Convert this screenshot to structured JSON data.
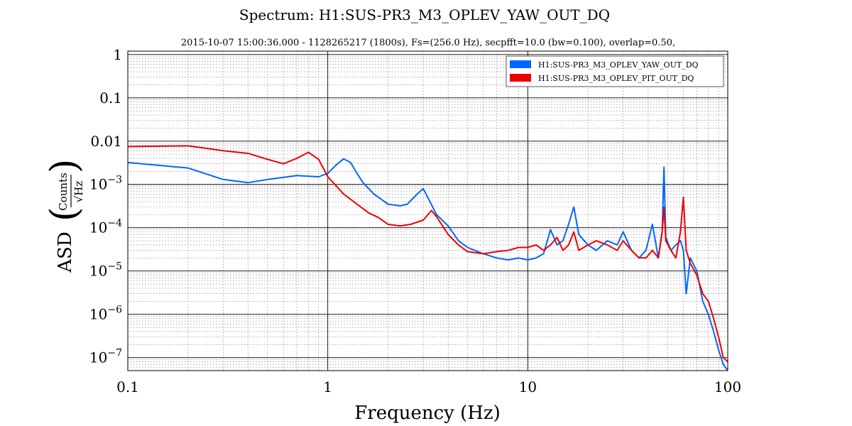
{
  "chart_data": {
    "type": "line",
    "title": "Spectrum: H1:SUS-PR3_M3_OPLEV_YAW_OUT_DQ",
    "subtitle": "2015-10-07 15:00:36.000 - 1128265217 (1800s), Fs=(256.0 Hz), secpfft=10.0 (bw=0.100), overlap=0.50,",
    "xlabel": "Frequency (Hz)",
    "ylabel": "ASD",
    "ylabel_fraction_num": "Counts",
    "ylabel_fraction_den": "√Hz",
    "xscale": "log",
    "yscale": "log",
    "xlim": [
      0.1,
      100
    ],
    "ylim": [
      5e-08,
      1.2
    ],
    "grid": true,
    "legend_position": "top-right",
    "x_ticks": [
      {
        "value": 0.1,
        "label": "0.1"
      },
      {
        "value": 1,
        "label": "1"
      },
      {
        "value": 10,
        "label": "10"
      },
      {
        "value": 100,
        "label": "100"
      }
    ],
    "y_ticks": [
      {
        "value": 1,
        "label": "1"
      },
      {
        "value": 0.1,
        "label": "0.1"
      },
      {
        "value": 0.01,
        "label": "0.01"
      },
      {
        "value": 0.001,
        "label": "10",
        "exp": "−3"
      },
      {
        "value": 0.0001,
        "label": "10",
        "exp": "−4"
      },
      {
        "value": 1e-05,
        "label": "10",
        "exp": "−5"
      },
      {
        "value": 1e-06,
        "label": "10",
        "exp": "−6"
      },
      {
        "value": 1e-07,
        "label": "10",
        "exp": "−7"
      }
    ],
    "series": [
      {
        "name": "H1:SUS-PR3_M3_OPLEV_YAW_OUT_DQ",
        "color": "#0066ff",
        "x": [
          0.1,
          0.2,
          0.3,
          0.4,
          0.5,
          0.7,
          0.9,
          1.0,
          1.1,
          1.2,
          1.3,
          1.4,
          1.5,
          1.7,
          2.0,
          2.3,
          2.5,
          2.8,
          3.0,
          3.2,
          3.5,
          4.0,
          4.5,
          5.0,
          6.0,
          7.0,
          8.0,
          9.0,
          10.0,
          11.0,
          12.0,
          13.0,
          14.0,
          15.0,
          16.0,
          17.0,
          18.0,
          20.0,
          22.0,
          25.0,
          28.0,
          30.0,
          33.0,
          36.0,
          39.0,
          42.0,
          45.0,
          47.0,
          48.0,
          49.0,
          52.0,
          55.0,
          58.0,
          60.0,
          62.0,
          65.0,
          70.0,
          75.0,
          80.0,
          85.0,
          90.0,
          95.0,
          100.0
        ],
        "values": [
          0.0032,
          0.0024,
          0.0013,
          0.0011,
          0.0013,
          0.0016,
          0.0015,
          0.0018,
          0.0028,
          0.0039,
          0.0032,
          0.0018,
          0.0011,
          0.0006,
          0.00035,
          0.00032,
          0.00035,
          0.0006,
          0.0008,
          0.00045,
          0.0002,
          0.00011,
          5e-05,
          3.5e-05,
          2.5e-05,
          2e-05,
          1.8e-05,
          2e-05,
          1.8e-05,
          2e-05,
          2.5e-05,
          9e-05,
          4e-05,
          5e-05,
          0.00012,
          0.0003,
          7e-05,
          4e-05,
          3e-05,
          5e-05,
          4e-05,
          8e-05,
          3e-05,
          2e-05,
          3e-05,
          0.00012,
          2e-05,
          8e-05,
          0.0025,
          6e-05,
          3e-05,
          4e-05,
          5e-05,
          3e-05,
          3e-06,
          2e-05,
          1e-05,
          2e-06,
          1e-06,
          4e-07,
          1.5e-07,
          7e-08,
          5e-08
        ]
      },
      {
        "name": "H1:SUS-PR3_M3_OPLEV_PIT_OUT_DQ",
        "color": "#ee0000",
        "x": [
          0.1,
          0.2,
          0.3,
          0.4,
          0.5,
          0.6,
          0.7,
          0.8,
          0.9,
          1.0,
          1.2,
          1.4,
          1.6,
          1.8,
          2.0,
          2.3,
          2.6,
          3.0,
          3.3,
          3.5,
          4.0,
          4.5,
          5.0,
          6.0,
          7.0,
          8.0,
          9.0,
          10.0,
          11.0,
          12.0,
          13.0,
          14.0,
          15.0,
          16.0,
          17.0,
          18.0,
          20.0,
          22.0,
          25.0,
          28.0,
          30.0,
          33.0,
          36.0,
          39.0,
          42.0,
          45.0,
          47.0,
          48.0,
          49.0,
          52.0,
          55.0,
          58.0,
          60.0,
          62.0,
          65.0,
          70.0,
          75.0,
          80.0,
          85.0,
          90.0,
          95.0,
          100.0
        ],
        "values": [
          0.0075,
          0.0078,
          0.006,
          0.0052,
          0.0038,
          0.003,
          0.004,
          0.0055,
          0.0038,
          0.0015,
          0.0006,
          0.00035,
          0.00022,
          0.00017,
          0.00012,
          0.00011,
          0.00012,
          0.00015,
          0.00025,
          0.00018,
          7e-05,
          4e-05,
          2.8e-05,
          2.5e-05,
          2.8e-05,
          3e-05,
          3.5e-05,
          3.5e-05,
          4e-05,
          3e-05,
          4e-05,
          6e-05,
          3e-05,
          4e-05,
          8e-05,
          3e-05,
          4e-05,
          5e-05,
          4e-05,
          3e-05,
          5e-05,
          3e-05,
          2e-05,
          2e-05,
          3e-05,
          2e-05,
          8e-05,
          0.0003,
          5e-05,
          3e-05,
          2e-05,
          8e-05,
          0.0005,
          3e-05,
          1.5e-05,
          8e-06,
          3e-06,
          2e-06,
          8e-07,
          3e-07,
          1e-07,
          8e-08
        ]
      }
    ]
  }
}
